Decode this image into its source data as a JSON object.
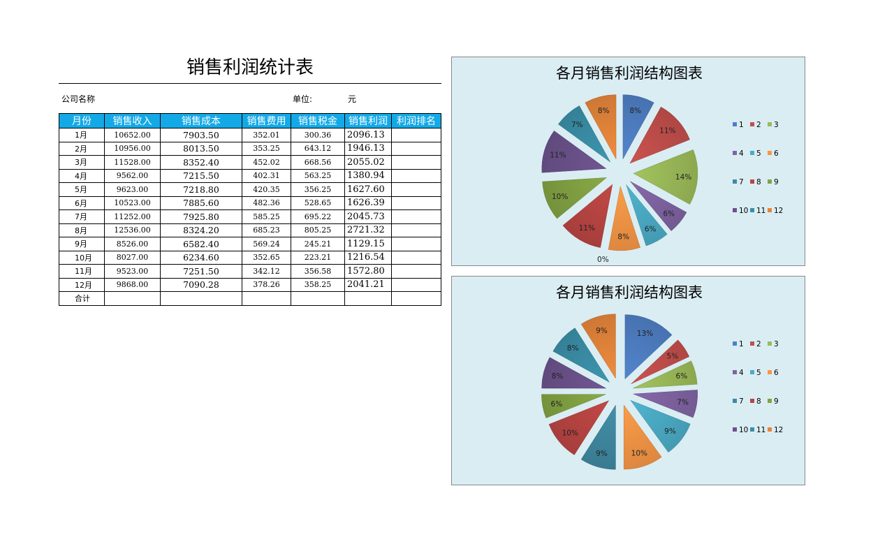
{
  "sheet": {
    "title": "销售利润统计表",
    "company_label": "公司名称",
    "unit_label": "单位:",
    "unit_value": "元",
    "headers": [
      "月份",
      "销售收入",
      "销售成本",
      "销售费用",
      "销售税金",
      "销售利润",
      "利润排名"
    ],
    "rows": [
      {
        "month": "1月",
        "revenue": "10652.00",
        "cost": "7903.50",
        "expense": "352.01",
        "tax": "300.36",
        "profit": "2096.13",
        "rank": ""
      },
      {
        "month": "2月",
        "revenue": "10956.00",
        "cost": "8013.50",
        "expense": "353.25",
        "tax": "643.12",
        "profit": "1946.13",
        "rank": ""
      },
      {
        "month": "3月",
        "revenue": "11528.00",
        "cost": "8352.40",
        "expense": "452.02",
        "tax": "668.56",
        "profit": "2055.02",
        "rank": ""
      },
      {
        "month": "4月",
        "revenue": "9562.00",
        "cost": "7215.50",
        "expense": "402.31",
        "tax": "563.25",
        "profit": "1380.94",
        "rank": ""
      },
      {
        "month": "5月",
        "revenue": "9623.00",
        "cost": "7218.80",
        "expense": "420.35",
        "tax": "356.25",
        "profit": "1627.60",
        "rank": ""
      },
      {
        "month": "6月",
        "revenue": "10523.00",
        "cost": "7885.60",
        "expense": "482.36",
        "tax": "528.65",
        "profit": "1626.39",
        "rank": ""
      },
      {
        "month": "7月",
        "revenue": "11252.00",
        "cost": "7925.80",
        "expense": "585.25",
        "tax": "695.22",
        "profit": "2045.73",
        "rank": ""
      },
      {
        "month": "8月",
        "revenue": "12536.00",
        "cost": "8324.20",
        "expense": "685.23",
        "tax": "805.25",
        "profit": "2721.32",
        "rank": ""
      },
      {
        "month": "9月",
        "revenue": "8526.00",
        "cost": "6582.40",
        "expense": "569.24",
        "tax": "245.21",
        "profit": "1129.15",
        "rank": ""
      },
      {
        "month": "10月",
        "revenue": "8027.00",
        "cost": "6234.60",
        "expense": "352.65",
        "tax": "223.21",
        "profit": "1216.54",
        "rank": ""
      },
      {
        "month": "11月",
        "revenue": "9523.00",
        "cost": "7251.50",
        "expense": "342.12",
        "tax": "356.58",
        "profit": "1572.80",
        "rank": ""
      },
      {
        "month": "12月",
        "revenue": "9868.00",
        "cost": "7090.28",
        "expense": "378.26",
        "tax": "358.25",
        "profit": "2041.21",
        "rank": ""
      }
    ],
    "total_label": "合计"
  },
  "colors": {
    "header_bg": "#13a9e6",
    "chart_bg": "#daedf3",
    "series": [
      "#4f7fc3",
      "#c24f4c",
      "#9bbb59",
      "#8064a2",
      "#4bacc6",
      "#f79646",
      "#3f89a1",
      "#b94543",
      "#82a243",
      "#6b528b",
      "#3a8fa8",
      "#e5853b"
    ]
  },
  "chart_data": [
    {
      "type": "pie",
      "title": "各月销售利润结构图表",
      "categories": [
        "1",
        "2",
        "3",
        "4",
        "5",
        "6",
        "7",
        "8",
        "9",
        "10",
        "11",
        "12"
      ],
      "values": [
        8,
        11,
        14,
        6,
        6,
        8,
        0,
        11,
        10,
        11,
        7,
        8
      ],
      "labels": [
        "8%",
        "11%",
        "14%",
        "6%",
        "6%",
        "8%",
        "0%",
        "11%",
        "10%",
        "11%",
        "7%",
        "8%"
      ],
      "legend_position": "right"
    },
    {
      "type": "pie",
      "title": "各月销售利润结构图表",
      "categories": [
        "1",
        "2",
        "3",
        "4",
        "5",
        "6",
        "7",
        "8",
        "9",
        "10",
        "11",
        "12"
      ],
      "values": [
        13,
        5,
        6,
        7,
        9,
        10,
        9,
        10,
        6,
        8,
        8,
        9
      ],
      "labels": [
        "13%",
        "5%",
        "6%",
        "7%",
        "9%",
        "10%",
        "9%",
        "10%",
        "6%",
        "8%",
        "8%",
        "9%"
      ],
      "legend_position": "right"
    }
  ]
}
